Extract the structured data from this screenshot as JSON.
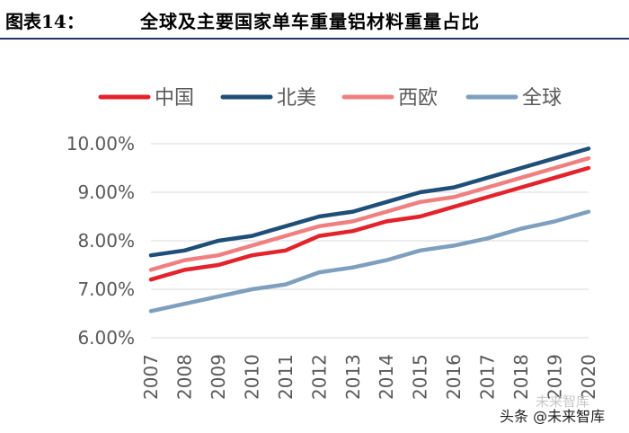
{
  "header": {
    "figure_label": "图表14：",
    "title": "全球及主要国家单车重量铝材料重量占比"
  },
  "watermark": {
    "faint_text": "未来智库",
    "text": "头条 @未来智库"
  },
  "colors": {
    "header_rule": "#1f3864",
    "grid": "#d9d9d9",
    "axis_text": "#595959"
  },
  "chart_data": {
    "type": "line",
    "title": "全球及主要国家单车重量铝材料重量占比",
    "xlabel": "",
    "ylabel": "",
    "categories": [
      "2007",
      "2008",
      "2009",
      "2010",
      "2011",
      "2012",
      "2013",
      "2014",
      "2015",
      "2016",
      "2017",
      "2018",
      "2019",
      "2020"
    ],
    "ylim": [
      6.0,
      10.0
    ],
    "yticks": [
      6.0,
      7.0,
      8.0,
      9.0,
      10.0
    ],
    "ytick_labels": [
      "6.00%",
      "7.00%",
      "8.00%",
      "9.00%",
      "10.00%"
    ],
    "grid": true,
    "legend_position": "top",
    "series": [
      {
        "name": "中国",
        "color": "#e3232c",
        "values": [
          7.2,
          7.4,
          7.5,
          7.7,
          7.8,
          8.1,
          8.2,
          8.4,
          8.5,
          8.7,
          8.9,
          9.1,
          9.3,
          9.5
        ]
      },
      {
        "name": "北美",
        "color": "#1f4e79",
        "values": [
          7.7,
          7.8,
          8.0,
          8.1,
          8.3,
          8.5,
          8.6,
          8.8,
          9.0,
          9.1,
          9.3,
          9.5,
          9.7,
          9.9
        ]
      },
      {
        "name": "西欧",
        "color": "#f08080",
        "values": [
          7.4,
          7.6,
          7.7,
          7.9,
          8.1,
          8.3,
          8.4,
          8.6,
          8.8,
          8.9,
          9.1,
          9.3,
          9.5,
          9.7
        ]
      },
      {
        "name": "全球",
        "color": "#7f9fbf",
        "values": [
          6.55,
          6.7,
          6.85,
          7.0,
          7.1,
          7.35,
          7.45,
          7.6,
          7.8,
          7.9,
          8.05,
          8.25,
          8.4,
          8.6
        ]
      }
    ]
  }
}
